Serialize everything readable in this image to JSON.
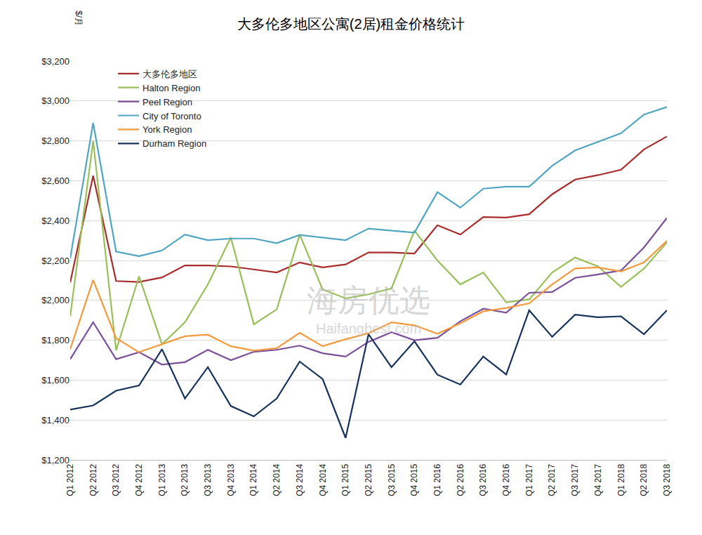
{
  "chart_data": {
    "type": "line",
    "title": "大多伦多地区公寓(2居)租金价格统计",
    "y_label": "$/月",
    "annotations": [
      "海房优选",
      "Haifangbest.com"
    ],
    "categories": [
      "Q1 2012",
      "Q2 2012",
      "Q3 2012",
      "Q4 2012",
      "Q1 2013",
      "Q2 2013",
      "Q3 2013",
      "Q4 2013",
      "Q1 2014",
      "Q2 2014",
      "Q3 2014",
      "Q4 2014",
      "Q1 2015",
      "Q2 2015",
      "Q3 2015",
      "Q4 2015",
      "Q1 2016",
      "Q2 2016",
      "Q3 2016",
      "Q4 2016",
      "Q1 2017",
      "Q2 2017",
      "Q3 2017",
      "Q4 2017",
      "Q1 2018",
      "Q2 2018",
      "Q3 2018"
    ],
    "series": [
      {
        "name": "大多伦多地区",
        "color": "#a92c2c",
        "values": [
          2090,
          2625,
          2097,
          2092,
          2115,
          2175,
          2175,
          2170,
          2155,
          2140,
          2190,
          2165,
          2180,
          2240,
          2240,
          2235,
          2377,
          2330,
          2418,
          2415,
          2432,
          2532,
          2606,
          2628,
          2655,
          2757,
          2822
        ]
      },
      {
        "name": "Halton Region",
        "color": "#98bf58",
        "values": [
          1920,
          2800,
          1750,
          2120,
          1780,
          1890,
          2080,
          2315,
          1880,
          1955,
          2330,
          2055,
          2010,
          2030,
          2060,
          2350,
          2200,
          2080,
          2140,
          1990,
          2005,
          2140,
          2215,
          2170,
          2068,
          2160,
          2290
        ]
      },
      {
        "name": "Peel Region",
        "color": "#7a4f9a",
        "values": [
          1705,
          1890,
          1705,
          1740,
          1678,
          1690,
          1752,
          1700,
          1742,
          1752,
          1773,
          1735,
          1718,
          1792,
          1840,
          1800,
          1812,
          1895,
          1958,
          1938,
          2038,
          2042,
          2113,
          2130,
          2150,
          2265,
          2413
        ]
      },
      {
        "name": "City of Toronto",
        "color": "#4fa5c2",
        "values": [
          2210,
          2890,
          2245,
          2222,
          2250,
          2330,
          2302,
          2310,
          2310,
          2287,
          2328,
          2315,
          2302,
          2360,
          2350,
          2340,
          2543,
          2465,
          2560,
          2570,
          2570,
          2675,
          2752,
          2795,
          2838,
          2932,
          2970
        ]
      },
      {
        "name": "York Region",
        "color": "#f39a3c",
        "values": [
          1755,
          2102,
          1810,
          1740,
          1780,
          1820,
          1828,
          1770,
          1748,
          1760,
          1837,
          1770,
          1805,
          1835,
          1890,
          1875,
          1833,
          1885,
          1945,
          1962,
          1985,
          2080,
          2160,
          2165,
          2145,
          2190,
          2298
        ]
      },
      {
        "name": "Durham Region",
        "color": "#16325c",
        "values": [
          1452,
          1473,
          1547,
          1573,
          1755,
          1508,
          1665,
          1470,
          1418,
          1508,
          1693,
          1605,
          1310,
          1830,
          1665,
          1795,
          1627,
          1578,
          1718,
          1628,
          1950,
          1817,
          1928,
          1915,
          1920,
          1830,
          1950
        ]
      }
    ],
    "ylim": [
      1200,
      3200
    ],
    "yticks": [
      {
        "value": 1200,
        "label": "$1,200"
      },
      {
        "value": 1400,
        "label": "$1,400"
      },
      {
        "value": 1600,
        "label": "$1,600"
      },
      {
        "value": 1800,
        "label": "$1,800"
      },
      {
        "value": 2000,
        "label": "$2,000"
      },
      {
        "value": 2200,
        "label": "$2,200"
      },
      {
        "value": 2400,
        "label": "$2,400"
      },
      {
        "value": 2600,
        "label": "$2,600"
      },
      {
        "value": 2800,
        "label": "$2,800"
      },
      {
        "value": 3000,
        "label": "$3,000"
      },
      {
        "value": 3200,
        "label": "$3,200"
      }
    ],
    "grid": true,
    "legend": "top"
  }
}
